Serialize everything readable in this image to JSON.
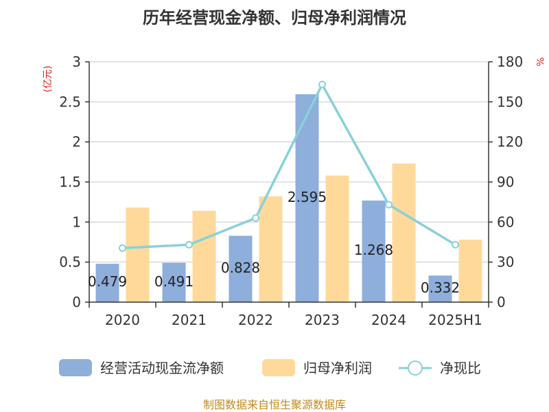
{
  "colors": {
    "cash_flow": "#8eaedb",
    "net_profit": "#ffd999",
    "ratio": "#88d1d8",
    "axis": "#333333",
    "grid": "#c8c8c8",
    "unit": "#e02020",
    "source": "#c08a1e"
  },
  "chart_data": {
    "type": "bar",
    "title": "历年经营现金净额、归母净利润情况",
    "categories": [
      "2020",
      "2021",
      "2022",
      "2023",
      "2024",
      "2025H1"
    ],
    "y_left": {
      "unit": "(亿元)",
      "ylim": [
        0,
        3
      ],
      "ticks": [
        "0",
        "0.5",
        "1",
        "1.5",
        "2",
        "2.5",
        "3"
      ]
    },
    "y_right": {
      "unit": "%",
      "ylim": [
        0,
        180
      ],
      "ticks": [
        "0",
        "30",
        "60",
        "90",
        "120",
        "150",
        "180"
      ]
    },
    "series": [
      {
        "name": "经营活动现金流净额",
        "type": "bar",
        "axis": "left",
        "values": [
          0.479,
          0.491,
          0.828,
          2.595,
          1.268,
          0.332
        ],
        "labels": [
          "0.479",
          "0.491",
          "0.828",
          "2.595",
          "1.268",
          "0.332"
        ]
      },
      {
        "name": "归母净利润",
        "type": "bar",
        "axis": "left",
        "values": [
          1.18,
          1.14,
          1.32,
          1.58,
          1.73,
          0.78
        ]
      },
      {
        "name": "净现比",
        "type": "line",
        "axis": "right",
        "values": [
          40.5,
          43,
          63,
          163,
          73,
          43
        ]
      }
    ],
    "grid": true,
    "legend_position": "bottom"
  },
  "source": "制图数据来自恒生聚源数据库"
}
